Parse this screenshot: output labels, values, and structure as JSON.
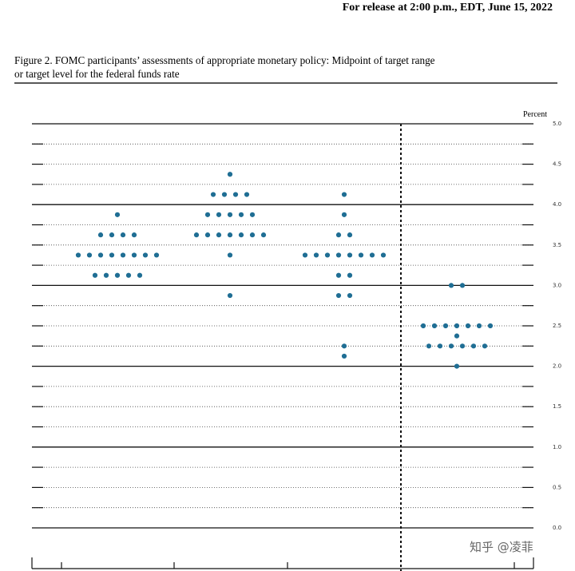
{
  "chart_data": {
    "type": "dot",
    "release_note": "For release at 2:00 p.m., EDT, June 15, 2022",
    "title": [
      "Figure 2.  FOMC participants’ assessments of appropriate monetary policy: Midpoint of target range",
      "or target level for the federal funds rate"
    ],
    "ylabel": "Percent",
    "watermark": "知乎 @凌菲",
    "color": "#1f6e94",
    "categories": [
      null,
      null,
      null,
      null
    ],
    "dots": [
      [
        3.875,
        3.625,
        3.625,
        3.625,
        3.625,
        3.375,
        3.375,
        3.375,
        3.375,
        3.375,
        3.375,
        3.375,
        3.375,
        3.125,
        3.125,
        3.125,
        3.125,
        3.125
      ],
      [
        4.375,
        4.125,
        4.125,
        4.125,
        4.125,
        3.875,
        3.875,
        3.875,
        3.875,
        3.875,
        3.625,
        3.625,
        3.625,
        3.625,
        3.625,
        3.625,
        3.625,
        3.375,
        2.875
      ],
      [
        4.125,
        3.875,
        3.625,
        3.625,
        3.375,
        3.375,
        3.375,
        3.375,
        3.375,
        3.375,
        3.375,
        3.375,
        3.125,
        3.125,
        2.875,
        2.875,
        2.25,
        2.125
      ],
      [
        3.0,
        3.0,
        2.5,
        2.5,
        2.5,
        2.5,
        2.5,
        2.5,
        2.5,
        2.375,
        2.25,
        2.25,
        2.25,
        2.25,
        2.25,
        2.25,
        2.0
      ]
    ],
    "ylim": [
      0,
      5
    ],
    "yticks": [
      {
        "value": 0,
        "label": "0.0"
      },
      {
        "value": 0.5,
        "label": "0.5"
      },
      {
        "value": 1,
        "label": "1.0"
      },
      {
        "value": 1.5,
        "label": "1.5"
      },
      {
        "value": 2,
        "label": "2.0"
      },
      {
        "value": 2.5,
        "label": "2.5"
      },
      {
        "value": 3,
        "label": "3.0"
      },
      {
        "value": 3.5,
        "label": "3.5"
      },
      {
        "value": 4,
        "label": "4.0"
      },
      {
        "value": 4.5,
        "label": "4.5"
      },
      {
        "value": 5,
        "label": "5.0"
      }
    ],
    "minor_yticks": [
      0.25,
      0.75,
      1.25,
      1.75,
      2.25,
      2.75,
      3.25,
      3.75,
      4.25,
      4.75
    ],
    "grid": true
  }
}
